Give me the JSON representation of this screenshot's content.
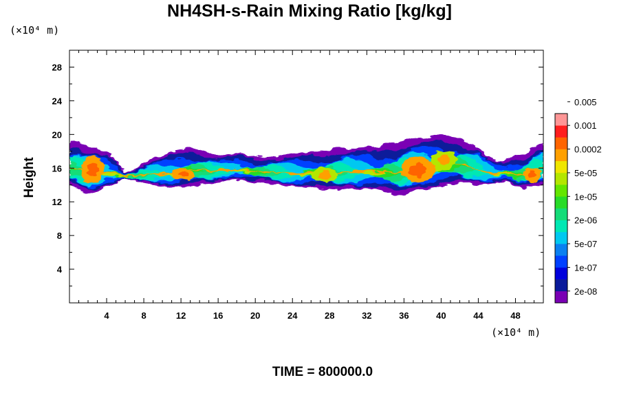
{
  "chart_data": {
    "type": "heatmap",
    "title": "NH4SH-s-Rain Mixing Ratio [kg/kg]",
    "time_label": "TIME = 800000.0",
    "ylabel": "Height",
    "x_unit": "(×10⁴ m)",
    "y_unit": "(×10⁴ m)",
    "xlim": [
      0,
      51
    ],
    "ylim": [
      0,
      30
    ],
    "x_ticks": [
      4,
      8,
      12,
      16,
      20,
      24,
      28,
      32,
      36,
      40,
      44,
      48
    ],
    "y_ticks": [
      4,
      8,
      12,
      16,
      20,
      24,
      28
    ],
    "x_tick_labels": [
      "4",
      "8",
      "12",
      "16",
      "20",
      "24",
      "28",
      "32",
      "36",
      "40",
      "44",
      "48"
    ],
    "y_tick_labels": [
      "4",
      "8",
      "12",
      "16",
      "20",
      "24",
      "28"
    ],
    "colorbar": {
      "colors": [
        "#7a00b4",
        "#0a1a9a",
        "#0000dc",
        "#0040ff",
        "#0a80f0",
        "#00c8f0",
        "#00e8b4",
        "#14dc78",
        "#28dc28",
        "#64e600",
        "#b4e600",
        "#f0e600",
        "#ffa000",
        "#ff6400",
        "#ff1e1e",
        "#ff9696"
      ],
      "labels": [
        "2e-08",
        "1e-07",
        "5e-07",
        "2e-06",
        "1e-05",
        "5e-05",
        "0.0002",
        "0.001",
        "0.005"
      ]
    },
    "cloud_layer": {
      "x": [
        0,
        1,
        2,
        3,
        4,
        5,
        6,
        7,
        8,
        9,
        10,
        11,
        12,
        13,
        14,
        15,
        16,
        17,
        18,
        19,
        20,
        21,
        22,
        23,
        24,
        25,
        26,
        27,
        28,
        29,
        30,
        31,
        32,
        33,
        34,
        35,
        36,
        37,
        38,
        39,
        40,
        41,
        42,
        43,
        44,
        45,
        46,
        47,
        48,
        49,
        50,
        51
      ],
      "base": [
        14.0,
        13.5,
        13.0,
        13.2,
        13.8,
        14.2,
        14.8,
        14.5,
        14.3,
        14.0,
        13.8,
        13.6,
        13.8,
        13.9,
        14.0,
        14.2,
        14.3,
        14.5,
        14.6,
        14.5,
        14.3,
        14.3,
        14.1,
        13.9,
        13.8,
        13.7,
        13.8,
        13.5,
        13.5,
        13.4,
        13.6,
        13.5,
        13.6,
        13.5,
        13.2,
        12.9,
        12.8,
        13.3,
        13.5,
        13.6,
        13.8,
        14.0,
        14.2,
        14.1,
        14.0,
        14.1,
        14.3,
        14.5,
        13.7,
        13.6,
        14.0,
        14.0
      ],
      "top": [
        19.0,
        19.2,
        18.5,
        18.2,
        18.0,
        17.0,
        15.5,
        15.8,
        16.5,
        17.2,
        17.5,
        18.0,
        18.3,
        18.5,
        18.2,
        17.8,
        17.5,
        17.6,
        17.8,
        17.6,
        17.4,
        17.3,
        17.4,
        17.6,
        17.7,
        17.8,
        18.0,
        18.0,
        18.2,
        18.4,
        18.3,
        18.5,
        18.6,
        18.5,
        18.8,
        19.0,
        19.3,
        19.5,
        19.6,
        19.7,
        19.9,
        19.8,
        19.5,
        19.0,
        18.5,
        17.5,
        16.8,
        17.0,
        17.5,
        17.6,
        18.5,
        19.0
      ]
    }
  }
}
